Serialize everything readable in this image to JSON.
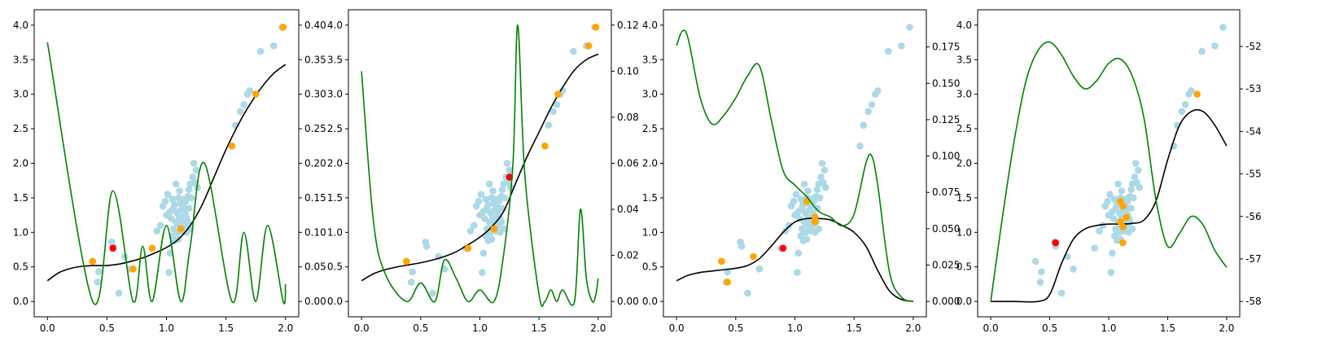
{
  "colors": {
    "background_points": "#add8e6",
    "labeled_points": "#ffa500",
    "next_point": "#ff0000",
    "mean_curve": "#000000",
    "acquisition_curve": "#008000"
  },
  "shared_scatter": {
    "x": [
      0.38,
      0.42,
      0.43,
      0.54,
      0.55,
      0.6,
      0.65,
      0.7,
      0.88,
      0.92,
      0.95,
      0.97,
      0.99,
      1.0,
      1.01,
      1.02,
      1.03,
      1.03,
      1.04,
      1.05,
      1.05,
      1.06,
      1.06,
      1.07,
      1.07,
      1.08,
      1.08,
      1.09,
      1.09,
      1.1,
      1.1,
      1.1,
      1.11,
      1.11,
      1.12,
      1.12,
      1.12,
      1.13,
      1.13,
      1.14,
      1.14,
      1.15,
      1.15,
      1.16,
      1.16,
      1.17,
      1.17,
      1.18,
      1.18,
      1.19,
      1.19,
      1.2,
      1.2,
      1.21,
      1.22,
      1.23,
      1.24,
      1.25,
      1.26,
      1.55,
      1.58,
      1.62,
      1.65,
      1.68,
      1.7,
      1.79,
      1.9,
      1.97
    ],
    "y": [
      0.58,
      0.28,
      0.43,
      0.86,
      0.8,
      0.12,
      0.65,
      0.47,
      0.77,
      1.02,
      1.1,
      1.38,
      1.45,
      1.25,
      1.55,
      0.42,
      1.3,
      0.7,
      1.2,
      1.48,
      0.95,
      1.05,
      1.35,
      1.4,
      0.88,
      1.15,
      1.7,
      1.0,
      1.28,
      0.9,
      1.12,
      1.5,
      1.22,
      1.6,
      1.08,
      1.32,
      1.42,
      1.18,
      1.02,
      1.38,
      1.48,
      1.1,
      1.3,
      1.25,
      1.45,
      1.2,
      1.0,
      1.52,
      1.15,
      1.35,
      1.62,
      1.7,
      1.05,
      1.5,
      1.8,
      2.0,
      1.72,
      1.9,
      1.65,
      2.25,
      2.55,
      2.75,
      2.85,
      3.0,
      3.05,
      3.62,
      3.7,
      3.97
    ]
  },
  "chart_data": [
    {
      "type": "scatter",
      "xlim": [
        0.0,
        2.0
      ],
      "ylim": [
        0.0,
        4.0
      ],
      "y2lim": [
        0.0,
        0.4
      ],
      "xticks": [
        "0.0",
        "0.5",
        "1.0",
        "1.5",
        "2.0"
      ],
      "yticks": [
        "0.0",
        "0.5",
        "1.0",
        "1.5",
        "2.0",
        "2.5",
        "3.0",
        "3.5",
        "4.0"
      ],
      "y2ticks": [
        "0.00",
        "0.05",
        "0.10",
        "0.15",
        "0.20",
        "0.25",
        "0.30",
        "0.35",
        "0.40"
      ],
      "orange_points": {
        "x": [
          0.38,
          0.72,
          0.88,
          1.12,
          1.55,
          1.75,
          1.98
        ],
        "y": [
          0.58,
          0.47,
          0.77,
          1.05,
          2.25,
          3.0,
          3.97
        ]
      },
      "red_points": {
        "x": [
          0.55
        ],
        "y": [
          0.77
        ]
      },
      "mean_curve": {
        "x": [
          0.0,
          0.1,
          0.2,
          0.3,
          0.4,
          0.5,
          0.6,
          0.7,
          0.8,
          0.9,
          1.0,
          1.1,
          1.2,
          1.3,
          1.4,
          1.5,
          1.6,
          1.7,
          1.8,
          1.9,
          2.0
        ],
        "y": [
          0.3,
          0.42,
          0.48,
          0.51,
          0.52,
          0.52,
          0.54,
          0.58,
          0.63,
          0.7,
          0.78,
          0.9,
          1.1,
          1.4,
          1.8,
          2.2,
          2.55,
          2.85,
          3.1,
          3.3,
          3.43
        ]
      },
      "acquisition_curve": {
        "x": [
          0.0,
          0.38,
          0.55,
          0.72,
          0.8,
          0.88,
          1.0,
          1.12,
          1.2,
          1.32,
          1.55,
          1.65,
          1.75,
          1.85,
          1.98,
          2.0
        ],
        "y": [
          0.375,
          0.0,
          0.16,
          0.0,
          0.08,
          0.0,
          0.11,
          0.0,
          0.08,
          0.2,
          0.0,
          0.1,
          0.0,
          0.11,
          0.0,
          0.025
        ]
      }
    },
    {
      "type": "scatter",
      "xlim": [
        0.0,
        2.0
      ],
      "ylim": [
        0.0,
        4.0
      ],
      "y2lim": [
        0.0,
        0.12
      ],
      "xticks": [
        "0.0",
        "0.5",
        "1.0",
        "1.5",
        "2.0"
      ],
      "yticks": [
        "0.0",
        "0.5",
        "1.0",
        "1.5",
        "2.0",
        "2.5",
        "3.0",
        "3.5",
        "4.0"
      ],
      "y2ticks": [
        "0.00",
        "0.02",
        "0.04",
        "0.06",
        "0.08",
        "0.10",
        "0.12"
      ],
      "orange_points": {
        "x": [
          0.38,
          0.9,
          1.12,
          1.55,
          1.66,
          1.92,
          1.98
        ],
        "y": [
          0.58,
          0.77,
          1.05,
          2.25,
          3.0,
          3.7,
          3.97
        ]
      },
      "red_points": {
        "x": [
          1.25
        ],
        "y": [
          1.8
        ]
      },
      "mean_curve": {
        "x": [
          0.0,
          0.1,
          0.2,
          0.3,
          0.4,
          0.5,
          0.6,
          0.7,
          0.8,
          0.9,
          1.0,
          1.1,
          1.2,
          1.3,
          1.4,
          1.5,
          1.6,
          1.7,
          1.8,
          1.9,
          2.0
        ],
        "y": [
          0.3,
          0.4,
          0.46,
          0.5,
          0.53,
          0.56,
          0.6,
          0.65,
          0.72,
          0.82,
          0.93,
          1.08,
          1.3,
          1.7,
          2.1,
          2.45,
          2.8,
          3.1,
          3.35,
          3.5,
          3.58
        ]
      },
      "acquisition_curve": {
        "x": [
          0.0,
          0.1,
          0.2,
          0.38,
          0.5,
          0.62,
          0.7,
          0.8,
          0.9,
          1.0,
          1.12,
          1.2,
          1.28,
          1.32,
          1.38,
          1.5,
          1.55,
          1.6,
          1.65,
          1.7,
          1.8,
          1.85,
          1.9,
          1.95,
          1.98,
          2.0
        ],
        "y": [
          0.1,
          0.035,
          0.012,
          0.0,
          0.008,
          0.0,
          0.018,
          0.01,
          0.0,
          0.005,
          0.0,
          0.02,
          0.06,
          0.12,
          0.055,
          0.003,
          0.0,
          0.005,
          0.0,
          0.005,
          0.0,
          0.04,
          0.01,
          0.0,
          0.003,
          0.01
        ]
      }
    },
    {
      "type": "scatter",
      "xlim": [
        0.0,
        2.0
      ],
      "ylim": [
        0.0,
        4.0
      ],
      "y2lim": [
        0.0,
        0.19
      ],
      "xticks": [
        "0.0",
        "0.5",
        "1.0",
        "1.5",
        "2.0"
      ],
      "yticks": [
        "0.0",
        "0.5",
        "1.0",
        "1.5",
        "2.0",
        "2.5",
        "3.0",
        "3.5",
        "4.0"
      ],
      "y2ticks": [
        "0.000",
        "0.025",
        "0.050",
        "0.075",
        "0.100",
        "0.125",
        "0.150",
        "0.175"
      ],
      "orange_points": {
        "x": [
          0.38,
          0.43,
          0.65,
          1.1,
          1.17,
          1.17
        ],
        "y": [
          0.58,
          0.28,
          0.65,
          1.45,
          1.22,
          1.15
        ]
      },
      "red_points": {
        "x": [
          0.9
        ],
        "y": [
          0.77
        ]
      },
      "mean_curve": {
        "x": [
          0.0,
          0.1,
          0.2,
          0.3,
          0.4,
          0.5,
          0.6,
          0.7,
          0.8,
          0.9,
          1.0,
          1.1,
          1.2,
          1.3,
          1.4,
          1.5,
          1.6,
          1.7,
          1.8,
          1.9,
          2.0
        ],
        "y": [
          0.3,
          0.38,
          0.42,
          0.44,
          0.46,
          0.48,
          0.52,
          0.62,
          0.8,
          1.0,
          1.15,
          1.2,
          1.2,
          1.18,
          1.1,
          1.0,
          0.8,
          0.45,
          0.15,
          0.03,
          0.0
        ]
      },
      "acquisition_curve": {
        "x": [
          0.0,
          0.05,
          0.1,
          0.2,
          0.3,
          0.4,
          0.5,
          0.6,
          0.7,
          0.8,
          0.9,
          1.0,
          1.1,
          1.2,
          1.3,
          1.4,
          1.5,
          1.6,
          1.65,
          1.7,
          1.8,
          1.9,
          2.0
        ],
        "y": [
          0.176,
          0.186,
          0.18,
          0.14,
          0.122,
          0.128,
          0.14,
          0.155,
          0.162,
          0.125,
          0.09,
          0.08,
          0.072,
          0.062,
          0.058,
          0.052,
          0.06,
          0.095,
          0.1,
          0.08,
          0.02,
          0.003,
          0.0
        ]
      }
    },
    {
      "type": "scatter",
      "xlim": [
        0.0,
        2.0
      ],
      "ylim": [
        0.0,
        4.0
      ],
      "y2lim": [
        -58.0,
        -51.5
      ],
      "xticks": [
        "0.0",
        "0.5",
        "1.0",
        "1.5",
        "2.0"
      ],
      "yticks": [
        "0.0",
        "0.5",
        "1.0",
        "1.5",
        "2.0",
        "2.5",
        "3.0",
        "3.5",
        "4.0"
      ],
      "y2ticks": [
        "-58",
        "-57",
        "-56",
        "-55",
        "-54",
        "-53",
        "-52"
      ],
      "orange_points": {
        "x": [
          1.1,
          1.12,
          1.15,
          1.1,
          1.12,
          1.12,
          1.75
        ],
        "y": [
          1.45,
          1.38,
          1.22,
          1.15,
          1.08,
          0.85,
          3.0
        ]
      },
      "red_points": {
        "x": [
          0.55
        ],
        "y": [
          0.85
        ]
      },
      "mean_curve": {
        "x": [
          0.0,
          0.2,
          0.4,
          0.5,
          0.6,
          0.7,
          0.8,
          0.9,
          1.0,
          1.1,
          1.2,
          1.3,
          1.4,
          1.5,
          1.6,
          1.7,
          1.8,
          1.9,
          2.0
        ],
        "y": [
          0.0,
          0.0,
          0.0,
          0.1,
          0.55,
          0.9,
          1.05,
          1.1,
          1.12,
          1.12,
          1.13,
          1.18,
          1.45,
          2.05,
          2.55,
          2.75,
          2.75,
          2.55,
          2.25
        ]
      },
      "acquisition_curve": {
        "x": [
          0.0,
          0.1,
          0.2,
          0.3,
          0.4,
          0.5,
          0.6,
          0.7,
          0.8,
          0.9,
          1.0,
          1.1,
          1.2,
          1.3,
          1.4,
          1.5,
          1.6,
          1.7,
          1.8,
          1.9,
          2.0
        ],
        "y": [
          -58.0,
          -56.0,
          -54.2,
          -52.8,
          -52.1,
          -51.9,
          -52.2,
          -52.7,
          -53.0,
          -52.8,
          -52.4,
          -52.3,
          -52.7,
          -53.7,
          -55.6,
          -56.7,
          -56.4,
          -56.0,
          -56.2,
          -56.8,
          -57.2
        ]
      }
    }
  ]
}
